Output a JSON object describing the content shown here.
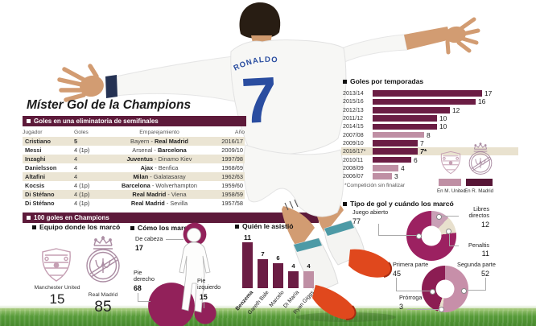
{
  "infographic": {
    "title": "Míster Gol de la Champions",
    "shirt": {
      "name": "RONALDO",
      "number": "7"
    },
    "hundred_header": "100 goles en Champions",
    "colors": {
      "header_bar": "#5d1a3a",
      "madrid_dark": "#6b1d44",
      "united_pink": "#bf8fa4",
      "highlight_beige": "#e9e2cf",
      "table_row_beige": "#ebe5d4",
      "donut_open_magenta": "#9c2161",
      "donut_light_pink": "#c9a0b6",
      "donut_cream": "#e8e0cd",
      "donut_time_dark": "#8c1d53",
      "donut_time_light": "#c78fa9",
      "figure_circle": "#92215a",
      "shirt_blue": "#2a4da0",
      "boot_orange": "#e0481d",
      "grass_green": "#579b39"
    }
  },
  "chart_data": [
    {
      "id": "goles_por_temporadas",
      "type": "bar",
      "orientation": "horizontal",
      "title": "Goles por temporadas",
      "categories": [
        "2013/14",
        "2015/16",
        "2012/13",
        "2011/12",
        "2014/15",
        "2007/08",
        "2009/10",
        "2016/17*",
        "2010/11",
        "2008/09",
        "2006/07"
      ],
      "values": [
        17,
        16,
        12,
        10,
        10,
        8,
        7,
        7,
        6,
        4,
        3
      ],
      "value_labels": [
        "17",
        "16",
        "12",
        "10",
        "10",
        "8",
        "7",
        "7*",
        "6",
        "4",
        "3"
      ],
      "series_team": [
        "madrid",
        "madrid",
        "madrid",
        "madrid",
        "madrid",
        "united",
        "madrid",
        "madrid",
        "madrid",
        "united",
        "united"
      ],
      "highlight_category": "2016/17*",
      "footnote": "*Competición sin finalizar",
      "legend": [
        {
          "label": "En M. United",
          "color": "#bf8fa4"
        },
        {
          "label": "En R. Madrid",
          "color": "#571536"
        }
      ],
      "xlim": [
        0,
        17
      ]
    },
    {
      "id": "tipo_de_gol",
      "type": "donut",
      "title": "Tipo de gol y cuándo los marcó",
      "slices": [
        {
          "label": "Libres directos",
          "value": 12,
          "color": "#c9a0b6"
        },
        {
          "label": "Penaltis",
          "value": 11,
          "color": "#e8e0cd"
        },
        {
          "label": "Juego abierto",
          "value": 77,
          "color": "#9c2161"
        }
      ],
      "start_angle_deg": 0,
      "clockwise": true
    },
    {
      "id": "cuando_los_marco",
      "type": "donut",
      "title": "",
      "slices": [
        {
          "label": "Segunda parte",
          "value": 52,
          "color": "#c78fa9"
        },
        {
          "label": "Prórroga",
          "value": 3,
          "color": "#e8e0cd"
        },
        {
          "label": "Primera parte",
          "value": 45,
          "color": "#8c1d53"
        }
      ],
      "start_angle_deg": 0,
      "clockwise": true
    },
    {
      "id": "quien_le_asistio",
      "type": "bar",
      "orientation": "vertical",
      "title": "Quién le asistió",
      "categories": [
        "Benzema",
        "Gareth Bale",
        "Marcelo",
        "Di María",
        "Ryan Giggs"
      ],
      "values": [
        11,
        7,
        6,
        4,
        4
      ],
      "series_team": [
        "madrid",
        "madrid",
        "madrid",
        "madrid",
        "united"
      ],
      "ylim": [
        0,
        11
      ]
    },
    {
      "id": "como_los_marco",
      "type": "pictogram",
      "title": "Cómo los marcó",
      "items": [
        {
          "label": "De cabeza",
          "value": 17
        },
        {
          "label": "Pie derecho",
          "value": 68
        },
        {
          "label": "Pie izquierdo",
          "value": 15
        }
      ]
    },
    {
      "id": "equipo_donde_los_marco",
      "type": "pictogram",
      "title": "Equipo donde los marcó",
      "items": [
        {
          "label": "Manchester United",
          "value": 15
        },
        {
          "label": "Real Madrid",
          "value": 85
        }
      ]
    },
    {
      "id": "semifinales_table",
      "type": "table",
      "title": "Goles en una eliminatoria de semifinales",
      "columns": [
        "Jugador",
        "Goles",
        "Emparejamiento",
        "Año"
      ],
      "rows": [
        {
          "player": "Cristiano",
          "goals": "5",
          "goals_bold": true,
          "pairing": [
            {
              "t": "Bayern",
              "b": false
            },
            {
              "t": "Real Madrid",
              "b": true
            }
          ],
          "year": "2016/17"
        },
        {
          "player": "Messi",
          "goals": "4 (1p)",
          "pairing": [
            {
              "t": "Arsenal",
              "b": false
            },
            {
              "t": "Barcelona",
              "b": true
            }
          ],
          "year": "2009/10"
        },
        {
          "player": "Inzaghi",
          "goals": "4",
          "pairing": [
            {
              "t": "Juventus",
              "b": true
            },
            {
              "t": "Dinamo Kiev",
              "b": false
            }
          ],
          "year": "1997/98"
        },
        {
          "player": "Danielsson",
          "goals": "4",
          "pairing": [
            {
              "t": "Ajax",
              "b": true
            },
            {
              "t": "Benfica",
              "b": false
            }
          ],
          "year": "1968/69"
        },
        {
          "player": "Altafini",
          "goals": "4",
          "pairing": [
            {
              "t": "Milan",
              "b": true
            },
            {
              "t": "Galatasaray",
              "b": false
            }
          ],
          "year": "1962/63"
        },
        {
          "player": "Kocsis",
          "goals": "4 (1p)",
          "pairing": [
            {
              "t": "Barcelona",
              "b": true
            },
            {
              "t": "Wolverhampton",
              "b": false
            }
          ],
          "year": "1959/60"
        },
        {
          "player": "Di Stéfano",
          "goals": "4 (1p)",
          "pairing": [
            {
              "t": "Real Madrid",
              "b": true
            },
            {
              "t": "Viena",
              "b": false
            }
          ],
          "year": "1958/59"
        },
        {
          "player": "Di Stéfano",
          "goals": "4 (1p)",
          "pairing": [
            {
              "t": "Real Madrid",
              "b": true
            },
            {
              "t": "Sevilla",
              "b": false
            }
          ],
          "year": "1957/58"
        }
      ]
    }
  ]
}
